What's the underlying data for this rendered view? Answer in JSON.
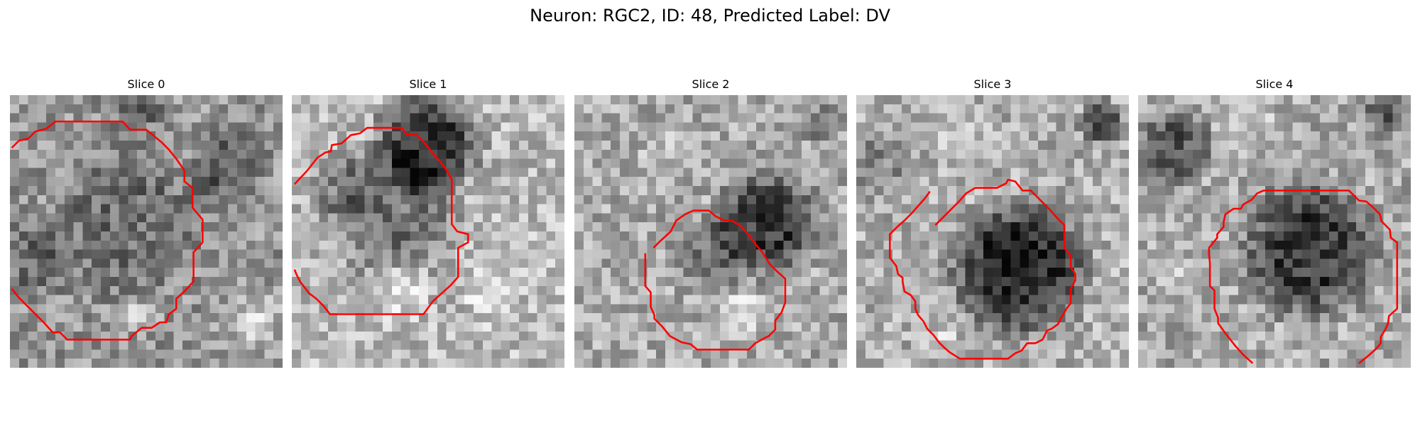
{
  "figure": {
    "title": "Neuron: RGC2, ID: 48, Predicted Label: DV"
  },
  "panels": [
    {
      "title": "Slice 0"
    },
    {
      "title": "Slice 1"
    },
    {
      "title": "Slice 2"
    },
    {
      "title": "Slice 3"
    },
    {
      "title": "Slice 4"
    }
  ],
  "colors": {
    "contour": "#ff0000",
    "background": "#ffffff"
  }
}
